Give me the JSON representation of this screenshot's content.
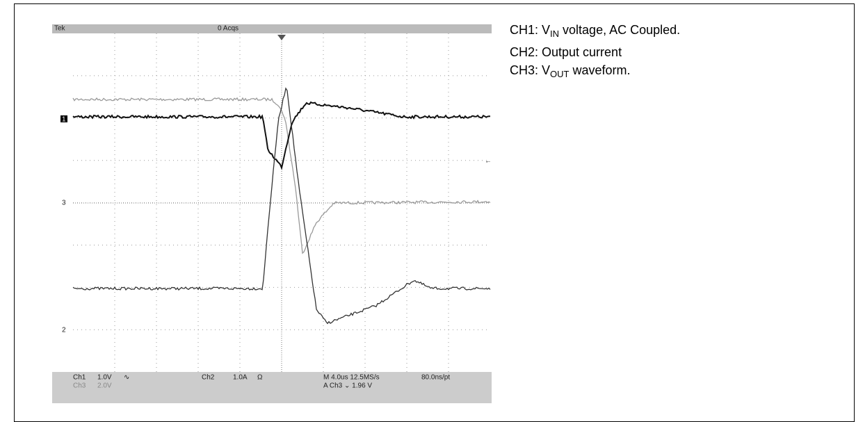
{
  "scope": {
    "header": {
      "brand": "Tek",
      "status": "0 Acqs"
    },
    "markers": {
      "ch1": "1",
      "ch3": "3",
      "ch2": "2"
    },
    "footer": {
      "ch1": "Ch1",
      "ch1_scale": "1.0V",
      "ch1_coupling": "∿",
      "ch2": "Ch2",
      "ch2_scale": "1.0A",
      "ch2_coupling": "Ω",
      "timebase": "M 4.0us 12.5MS/s",
      "resolution": "80.0ns/pt",
      "ch3": "Ch3",
      "ch3_scale": "2.0V",
      "trigger": "A Ch3 ⌄ 1.96 V"
    }
  },
  "legend": [
    {
      "prefix": "CH1: V",
      "sub": "IN",
      "suffix": " voltage, AC Coupled."
    },
    {
      "prefix": "CH2: Output current"
    },
    {
      "prefix": "CH3: V",
      "sub": "OUT",
      "suffix": " waveform."
    }
  ]
}
